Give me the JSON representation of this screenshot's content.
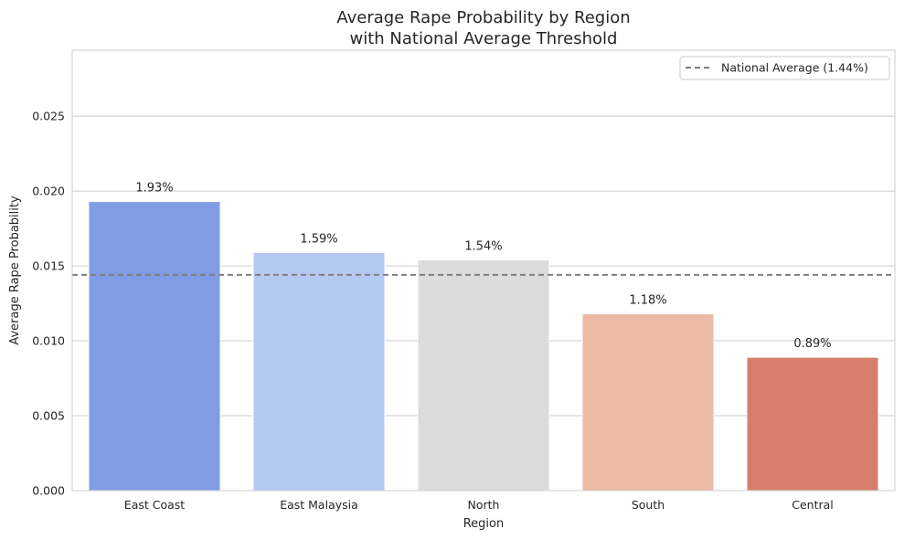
{
  "chart_data": {
    "type": "bar",
    "title": "Average Rape Probability by Region\nwith National Average Threshold",
    "title_lines": [
      "Average Rape Probability by Region",
      "with National Average Threshold"
    ],
    "xlabel": "Region",
    "ylabel": "Average Rape Probability",
    "categories": [
      "East Coast",
      "East Malaysia",
      "North",
      "South",
      "Central"
    ],
    "values": [
      0.0193,
      0.0159,
      0.0154,
      0.0118,
      0.0089
    ],
    "data_labels": [
      "1.93%",
      "1.59%",
      "1.54%",
      "1.18%",
      "0.89%"
    ],
    "colors": [
      "#7f9ce4",
      "#b4c9f2",
      "#dcdcdc",
      "#ecbaa4",
      "#d77e6a"
    ],
    "ylim": [
      0,
      0.0294
    ],
    "yticks": [
      0.0,
      0.005,
      0.01,
      0.015,
      0.02,
      0.025
    ],
    "ytick_labels": [
      "0.000",
      "0.005",
      "0.010",
      "0.015",
      "0.020",
      "0.025"
    ],
    "grid": true,
    "reference_line": {
      "value": 0.0144,
      "label": "National Average (1.44%)",
      "style": "dashed",
      "color": "#7f7f7f"
    },
    "legend": {
      "position": "top-right",
      "entries": [
        "National Average (1.44%)"
      ]
    }
  }
}
